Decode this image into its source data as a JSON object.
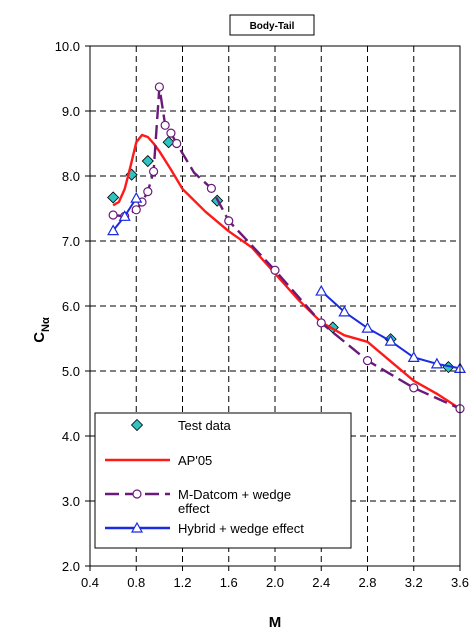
{
  "chart_data": {
    "type": "line",
    "title": "Body-Tail",
    "xlabel": "M",
    "ylabel": "C",
    "ylabel_subscript": "Nα",
    "xlim": [
      0.4,
      3.6
    ],
    "ylim": [
      2.0,
      10.0
    ],
    "xticks": [
      "0.4",
      "0.8",
      "1.2",
      "1.6",
      "2.0",
      "2.4",
      "2.8",
      "3.2",
      "3.6"
    ],
    "yticks": [
      "2.0",
      "3.0",
      "4.0",
      "5.0",
      "6.0",
      "7.0",
      "8.0",
      "9.0",
      "10.0"
    ],
    "grid": true,
    "legend_position": "bottom-left",
    "series": [
      {
        "name": "Test data",
        "style": "markers",
        "marker": "diamond",
        "color": "#2EC4C4",
        "x": [
          0.6,
          0.76,
          0.9,
          1.08,
          1.5,
          2.5,
          3.0,
          3.5
        ],
        "y": [
          7.67,
          8.02,
          8.23,
          8.52,
          7.62,
          5.67,
          5.49,
          5.06
        ]
      },
      {
        "name": "AP'05",
        "style": "line",
        "color": "#FF1A1A",
        "x": [
          0.6,
          0.65,
          0.7,
          0.75,
          0.8,
          0.85,
          0.9,
          0.95,
          1.0,
          1.1,
          1.2,
          1.4,
          1.6,
          1.8,
          2.0,
          2.2,
          2.4,
          2.6,
          2.8,
          3.0,
          3.2,
          3.4,
          3.6
        ],
        "y": [
          7.55,
          7.6,
          7.8,
          8.15,
          8.52,
          8.63,
          8.6,
          8.5,
          8.38,
          8.1,
          7.8,
          7.45,
          7.15,
          6.9,
          6.5,
          6.1,
          5.75,
          5.55,
          5.45,
          5.15,
          4.85,
          4.65,
          4.42
        ]
      },
      {
        "name": "M-Datcom + wedge effect",
        "style": "line-markers",
        "marker": "circle",
        "color": "#6A1B7A",
        "x": [
          0.6,
          0.7,
          0.8,
          0.85,
          0.9,
          0.95,
          1.0,
          1.05,
          1.1,
          1.15,
          1.2,
          1.3,
          1.45,
          1.6,
          2.0,
          2.4,
          2.8,
          3.2,
          3.6
        ],
        "y": [
          7.4,
          7.38,
          7.48,
          7.6,
          7.76,
          8.07,
          9.37,
          8.78,
          8.66,
          8.5,
          8.35,
          8.05,
          7.81,
          7.31,
          6.55,
          5.74,
          5.16,
          4.74,
          4.42
        ]
      },
      {
        "name": "Hybrid + wedge effect",
        "style": "line-markers",
        "marker": "triangle",
        "color": "#1A2BE0",
        "x": [
          0.6,
          0.7,
          0.8,
          2.4,
          2.6,
          2.8,
          3.0,
          3.2,
          3.4,
          3.6
        ],
        "y": [
          7.16,
          7.38,
          7.66,
          6.23,
          5.91,
          5.66,
          5.46,
          5.21,
          5.11,
          5.04
        ]
      }
    ]
  }
}
